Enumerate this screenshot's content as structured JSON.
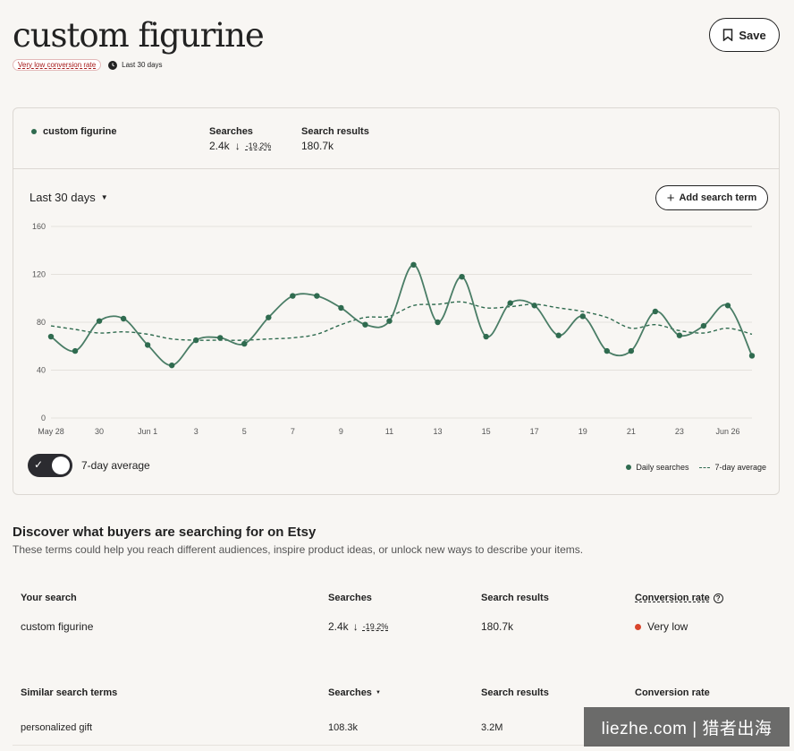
{
  "header": {
    "title": "custom figurine",
    "save_label": "Save",
    "badge": "Very low conversion rate",
    "period": "Last 30 days"
  },
  "summary": {
    "term": "custom figurine",
    "searches_label": "Searches",
    "searches_value": "2.4k",
    "searches_change": "-19.2%",
    "results_label": "Search results",
    "results_value": "180.7k"
  },
  "controls": {
    "range": "Last 30 days",
    "add_term": "Add search term",
    "toggle_label": "7-day average"
  },
  "chart_data": {
    "type": "line",
    "x": [
      "May 28",
      "May 29",
      "May 30",
      "May 31",
      "Jun 1",
      "Jun 2",
      "Jun 3",
      "Jun 4",
      "Jun 5",
      "Jun 6",
      "Jun 7",
      "Jun 8",
      "Jun 9",
      "Jun 10",
      "Jun 11",
      "Jun 12",
      "Jun 13",
      "Jun 14",
      "Jun 15",
      "Jun 16",
      "Jun 17",
      "Jun 18",
      "Jun 19",
      "Jun 20",
      "Jun 21",
      "Jun 22",
      "Jun 23",
      "Jun 24",
      "Jun 25",
      "Jun 26"
    ],
    "tick_labels": [
      "May 28",
      "30",
      "Jun 1",
      "3",
      "5",
      "7",
      "9",
      "11",
      "13",
      "15",
      "17",
      "19",
      "21",
      "23",
      "Jun 26"
    ],
    "ylim": [
      0,
      160
    ],
    "yticks": [
      0,
      40,
      80,
      120,
      160
    ],
    "series": [
      {
        "name": "Daily searches",
        "values": [
          68,
          56,
          81,
          83,
          61,
          44,
          65,
          67,
          62,
          84,
          102,
          102,
          92,
          78,
          81,
          128,
          80,
          118,
          68,
          96,
          94,
          69,
          85,
          56,
          56,
          89,
          69,
          77,
          94,
          52
        ]
      },
      {
        "name": "7-day average",
        "values": [
          77,
          74,
          71,
          72,
          70,
          66,
          65,
          65,
          65,
          66,
          67,
          70,
          78,
          84,
          85,
          94,
          95,
          97,
          92,
          93,
          95,
          92,
          89,
          84,
          75,
          78,
          73,
          71,
          75,
          70
        ]
      }
    ],
    "legend": [
      "Daily searches",
      "7-day average"
    ],
    "grid": true
  },
  "discover": {
    "title": "Discover what buyers are searching for on Etsy",
    "subtitle": "These terms could help you reach different audiences, inspire product ideas, or unlock new ways to describe your items."
  },
  "your_search": {
    "headers": [
      "Your search",
      "Searches",
      "Search results",
      "Conversion rate"
    ],
    "term": "custom figurine",
    "searches": "2.4k",
    "change": "-19.2%",
    "results": "180.7k",
    "conversion": "Very low"
  },
  "similar": {
    "headers": [
      "Similar search terms",
      "Searches",
      "Search results",
      "Conversion rate"
    ],
    "rows": [
      {
        "term": "personalized gift",
        "searches": "108.3k",
        "results": "3.2M"
      }
    ]
  },
  "watermark": "liezhe.com | 猎者出海"
}
